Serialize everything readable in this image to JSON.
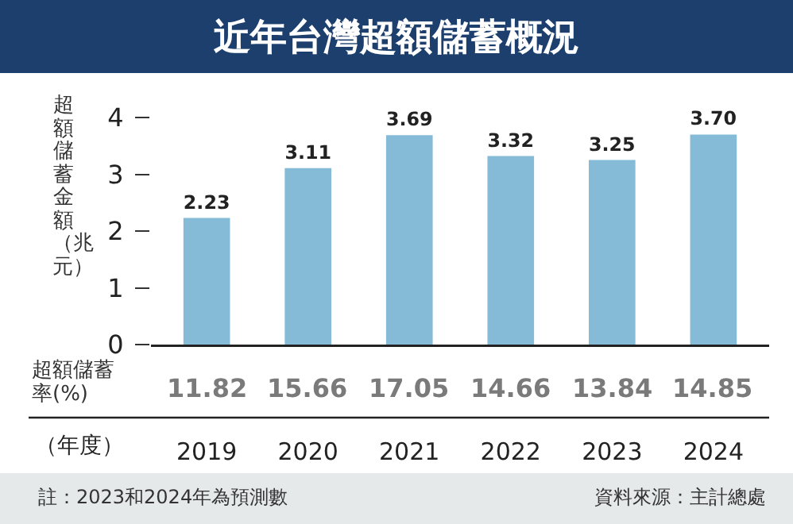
{
  "chart_data": {
    "type": "bar",
    "title": "近年台灣超額儲蓄概況",
    "ylabel": "超額儲蓄金額（兆元）",
    "xlabel": "（年度）",
    "categories": [
      "2019",
      "2020",
      "2021",
      "2022",
      "2023",
      "2024"
    ],
    "values": [
      2.23,
      3.11,
      3.69,
      3.32,
      3.25,
      3.7
    ],
    "value_labels": [
      "2.23",
      "3.11",
      "3.69",
      "3.32",
      "3.25",
      "3.70"
    ],
    "color": "#86bbd8",
    "ylim": [
      0,
      4
    ],
    "yticks": [
      0,
      1,
      2,
      3,
      4
    ],
    "grid": false,
    "annotations": [
      "超額儲蓄率(%)",
      "11.82",
      "15.66",
      "17.05",
      "14.66",
      "13.84",
      "14.85",
      "註：2023和2024年為預測數",
      "資料來源：主計總處"
    ]
  }
}
